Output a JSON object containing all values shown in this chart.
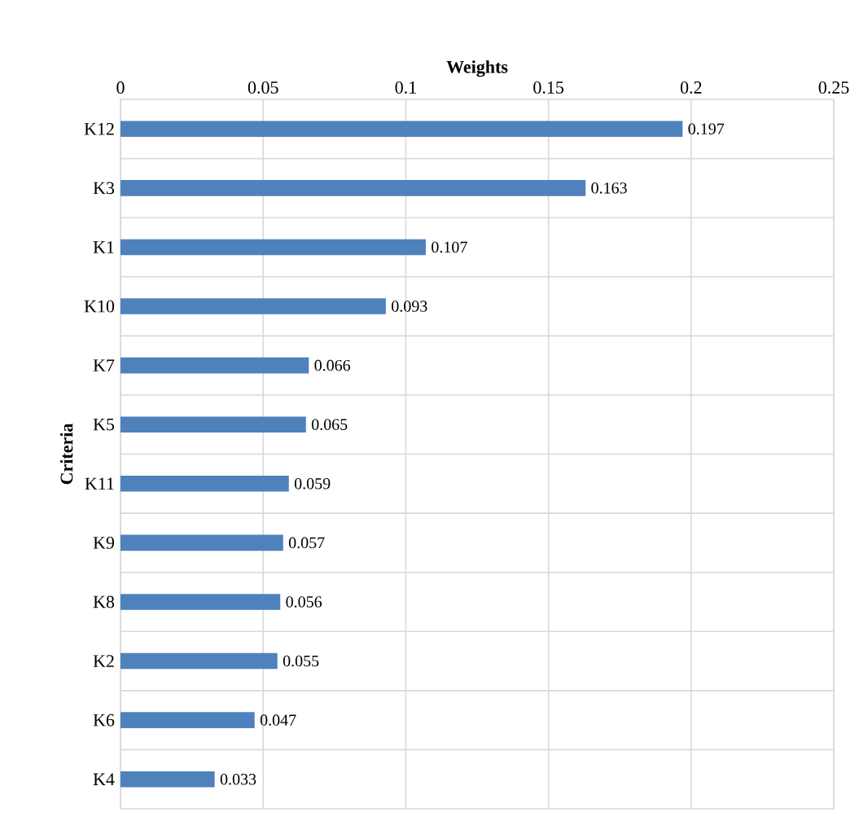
{
  "chart_data": {
    "type": "bar",
    "orientation": "horizontal",
    "xlabel": "Weights",
    "ylabel": "Criteria",
    "categories": [
      "K12",
      "K3",
      "K1",
      "K10",
      "K7",
      "K5",
      "K11",
      "K9",
      "K8",
      "K2",
      "K6",
      "K4"
    ],
    "values": [
      0.197,
      0.163,
      0.107,
      0.093,
      0.066,
      0.065,
      0.059,
      0.057,
      0.056,
      0.055,
      0.047,
      0.033
    ],
    "color": "#4f81bd",
    "data_labels": true,
    "grid": true,
    "xlim": [
      0,
      0.25
    ],
    "xticks": [
      0,
      0.05,
      0.1,
      0.15,
      0.2,
      0.25
    ]
  }
}
